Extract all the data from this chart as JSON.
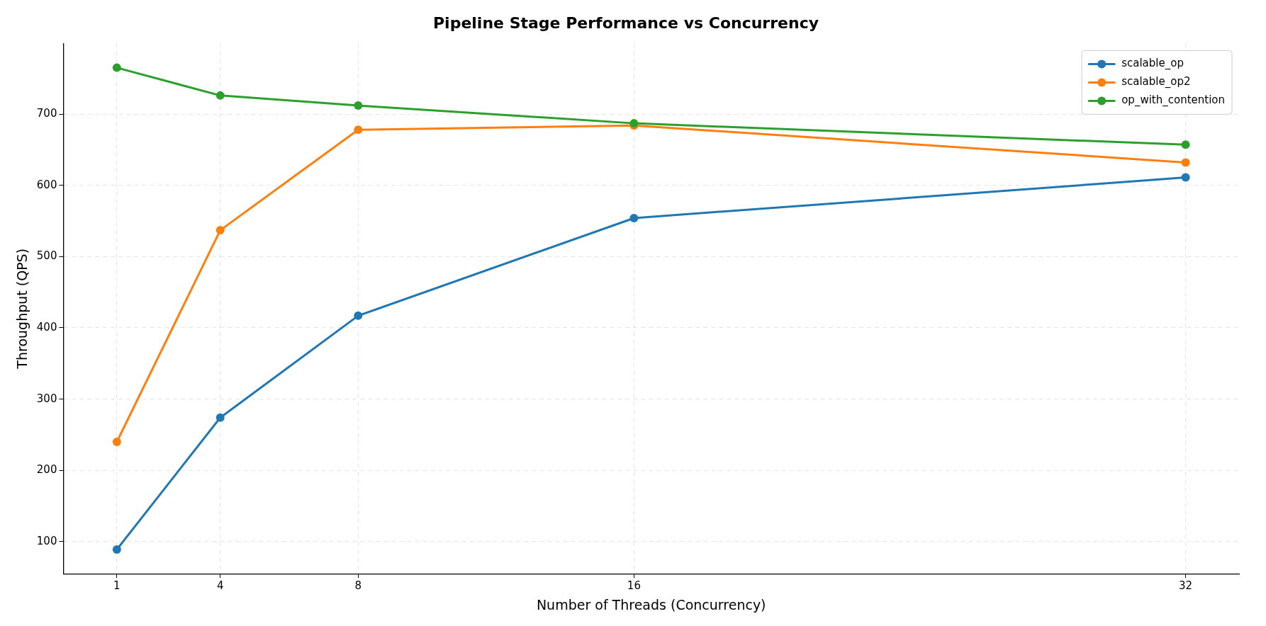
{
  "chart_data": {
    "type": "line",
    "title": "Pipeline Stage Performance vs Concurrency",
    "xlabel": "Number of Threads (Concurrency)",
    "ylabel": "Throughput (QPS)",
    "x": [
      1,
      4,
      8,
      16,
      32
    ],
    "series": [
      {
        "name": "scalable_op",
        "color": "#1f77b4",
        "values": [
          89,
          274,
          417,
          554,
          611
        ]
      },
      {
        "name": "scalable_op2",
        "color": "#ff7f0e",
        "values": [
          240,
          537,
          678,
          684,
          632
        ]
      },
      {
        "name": "op_with_contention",
        "color": "#2ca02c",
        "values": [
          765,
          726,
          712,
          687,
          657
        ]
      }
    ],
    "xlim": [
      -0.55,
      33.55
    ],
    "xticks": [
      1,
      4,
      8,
      16,
      32
    ],
    "ylim": [
      55,
      799
    ],
    "yticks": [
      100,
      200,
      300,
      400,
      500,
      600,
      700
    ],
    "grid": true,
    "legend": "top right",
    "marker": "circle",
    "line_style": "solid"
  }
}
